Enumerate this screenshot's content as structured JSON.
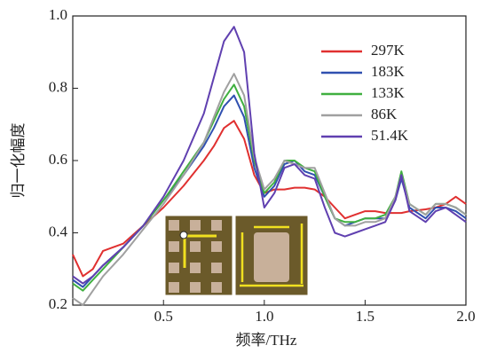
{
  "chart_data": {
    "type": "line",
    "xlabel": "频率/THz",
    "ylabel": "归一化幅度",
    "x": [
      0.05,
      0.1,
      0.15,
      0.2,
      0.3,
      0.4,
      0.5,
      0.6,
      0.7,
      0.75,
      0.8,
      0.85,
      0.9,
      0.95,
      1.0,
      1.05,
      1.1,
      1.15,
      1.2,
      1.25,
      1.3,
      1.35,
      1.4,
      1.45,
      1.5,
      1.55,
      1.6,
      1.65,
      1.68,
      1.72,
      1.8,
      1.85,
      1.9,
      1.95,
      2.0
    ],
    "series": [
      {
        "name": "297K",
        "color": "#e03030",
        "values": [
          0.34,
          0.28,
          0.3,
          0.35,
          0.37,
          0.42,
          0.47,
          0.53,
          0.6,
          0.64,
          0.69,
          0.71,
          0.66,
          0.56,
          0.51,
          0.52,
          0.52,
          0.525,
          0.525,
          0.52,
          0.5,
          0.47,
          0.44,
          0.45,
          0.46,
          0.46,
          0.455,
          0.455,
          0.455,
          0.46,
          0.465,
          0.47,
          0.48,
          0.5,
          0.48
        ]
      },
      {
        "name": "183K",
        "color": "#3050b0",
        "values": [
          0.27,
          0.25,
          0.28,
          0.31,
          0.36,
          0.42,
          0.49,
          0.56,
          0.64,
          0.69,
          0.75,
          0.78,
          0.72,
          0.58,
          0.5,
          0.53,
          0.59,
          0.6,
          0.57,
          0.56,
          0.5,
          0.44,
          0.42,
          0.43,
          0.44,
          0.44,
          0.44,
          0.49,
          0.55,
          0.47,
          0.44,
          0.47,
          0.47,
          0.46,
          0.44
        ]
      },
      {
        "name": "133K",
        "color": "#40b040",
        "values": [
          0.26,
          0.24,
          0.27,
          0.3,
          0.36,
          0.42,
          0.49,
          0.57,
          0.65,
          0.71,
          0.77,
          0.81,
          0.75,
          0.6,
          0.51,
          0.54,
          0.6,
          0.6,
          0.58,
          0.57,
          0.5,
          0.44,
          0.43,
          0.43,
          0.44,
          0.44,
          0.45,
          0.5,
          0.57,
          0.48,
          0.45,
          0.48,
          0.48,
          0.47,
          0.45
        ]
      },
      {
        "name": "86K",
        "color": "#a0a0a0",
        "values": [
          0.22,
          0.2,
          0.24,
          0.28,
          0.34,
          0.41,
          0.48,
          0.56,
          0.65,
          0.72,
          0.79,
          0.84,
          0.78,
          0.61,
          0.52,
          0.55,
          0.6,
          0.59,
          0.58,
          0.58,
          0.51,
          0.44,
          0.42,
          0.42,
          0.43,
          0.43,
          0.44,
          0.5,
          0.56,
          0.48,
          0.45,
          0.48,
          0.48,
          0.47,
          0.45
        ]
      },
      {
        "name": "51.4K",
        "color": "#6040b0",
        "values": [
          0.28,
          0.26,
          0.28,
          0.31,
          0.36,
          0.42,
          0.5,
          0.6,
          0.73,
          0.83,
          0.93,
          0.97,
          0.9,
          0.62,
          0.47,
          0.51,
          0.58,
          0.59,
          0.56,
          0.55,
          0.47,
          0.4,
          0.39,
          0.4,
          0.41,
          0.42,
          0.43,
          0.49,
          0.56,
          0.46,
          0.43,
          0.46,
          0.47,
          0.45,
          0.43
        ]
      }
    ],
    "xlim": [
      0.05,
      2.0
    ],
    "ylim": [
      0.2,
      1.0
    ],
    "xticks": [
      0.5,
      {
        "value": 1,
        "label": "1.0"
      },
      1.5,
      {
        "value": 2,
        "label": "2.0"
      }
    ],
    "yticks": [
      0.2,
      0.4,
      0.6,
      0.8,
      {
        "value": 1,
        "label": "1.0"
      }
    ],
    "legend": "upper-right"
  }
}
